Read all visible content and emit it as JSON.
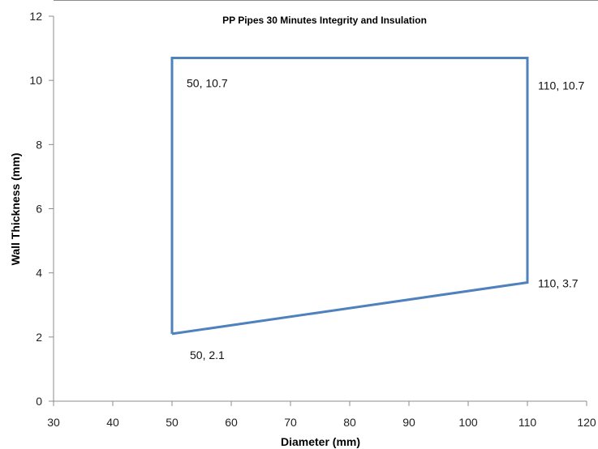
{
  "chart_data": {
    "type": "scatter",
    "title": "PP Pipes 30 Minutes Integrity and Insulation",
    "xlabel": "Diameter (mm)",
    "ylabel": "Wall Thickness (mm)",
    "xlim": [
      30,
      120
    ],
    "ylim": [
      0,
      12
    ],
    "x_ticks": [
      30,
      40,
      50,
      60,
      70,
      80,
      90,
      100,
      110,
      120
    ],
    "y_ticks": [
      0,
      2,
      4,
      6,
      8,
      10,
      12
    ],
    "grid": false,
    "legend": "none",
    "series": [
      {
        "color": "#4f81bd",
        "mode": "lines",
        "points": [
          {
            "x": 50,
            "y": 2.1,
            "label": "50, 2.1"
          },
          {
            "x": 50,
            "y": 10.7,
            "label": "50, 10.7"
          },
          {
            "x": 110,
            "y": 10.7,
            "label": "110, 10.7"
          },
          {
            "x": 110,
            "y": 3.7,
            "label": "110, 3.7"
          },
          {
            "x": 50,
            "y": 2.1
          }
        ]
      }
    ]
  }
}
